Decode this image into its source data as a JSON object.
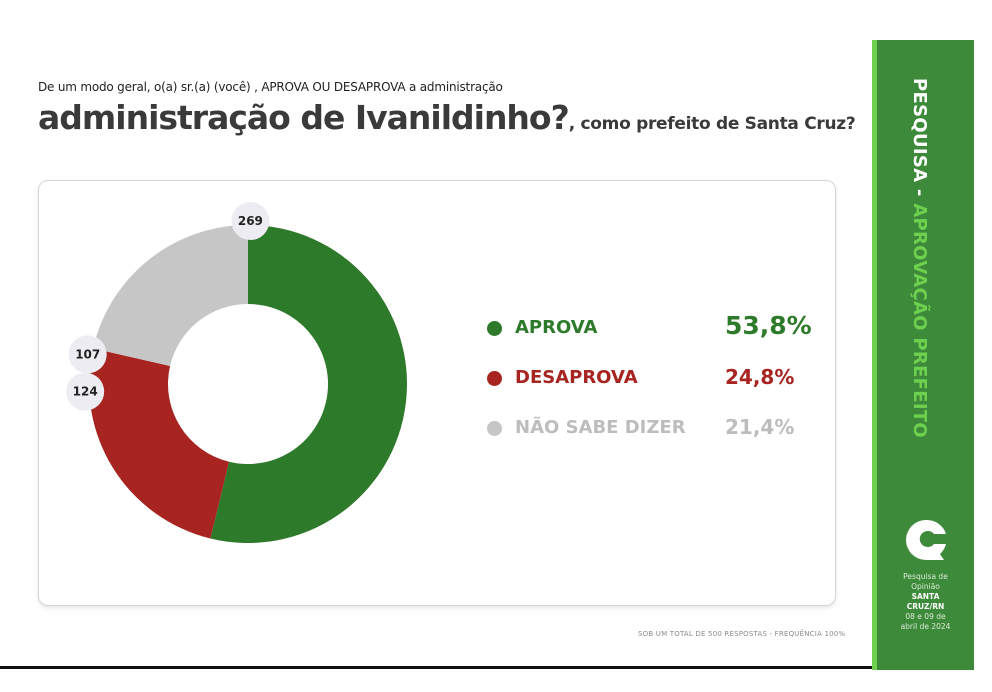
{
  "question_line": "De um modo geral, o(a) sr.(a) (você) , APROVA OU DESAPROVA a administração",
  "title_main": "administração de Ivanildinho?",
  "title_suffix": ", como prefeito de Santa Cruz?",
  "footnote": "SOB UM TOTAL DE 500 RESPOSTAS - FREQUÊNCIA 100%",
  "sidebar": {
    "title_white": "PESQUISA -",
    "title_green": " APROVAÇÃO PREFEITO",
    "lines": [
      "Pesquisa de",
      "Opinião",
      "SANTA",
      "CRUZ/RN",
      "08 e 09 de",
      "abril de 2024"
    ]
  },
  "colors": {
    "aprova": "#2e7a2b",
    "desaprova": "#a72420",
    "nao_sabe": "#c6c6c6",
    "sidebar": "#3d8a3a",
    "accent": "#6ed04f"
  },
  "chart_data": {
    "type": "pie",
    "donut": true,
    "categories": [
      "APROVA",
      "DESAPROVA",
      "NÃO SABE DIZER"
    ],
    "values": [
      269,
      124,
      107
    ],
    "value_labels": [
      "269",
      "124",
      "107"
    ],
    "percent_labels": [
      "53,8%",
      "24,8%",
      "21,4%"
    ],
    "colors": [
      "#2e7a2b",
      "#a72420",
      "#c6c6c6"
    ],
    "legend_position": "right"
  }
}
